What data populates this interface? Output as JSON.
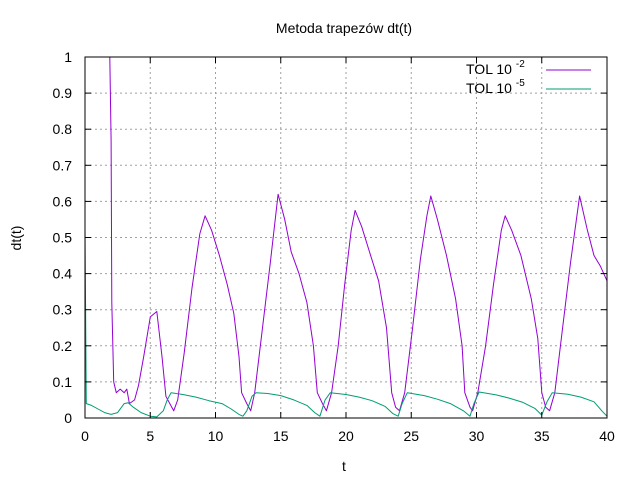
{
  "chart_data": {
    "type": "line",
    "title": "Metoda trapezów dt(t)",
    "xlabel": "t",
    "ylabel": "dt(t)",
    "xlim": [
      0,
      40
    ],
    "ylim": [
      0,
      1
    ],
    "xticks": [
      "0",
      "5",
      "10",
      "15",
      "20",
      "25",
      "30",
      "35",
      "40"
    ],
    "yticks": [
      "0",
      "0.1",
      "0.2",
      "0.3",
      "0.4",
      "0.5",
      "0.6",
      "0.7",
      "0.8",
      "0.9",
      "1"
    ],
    "grid": true,
    "legend_position": "top-right",
    "series": [
      {
        "name": "TOL 10",
        "name_exponent": "-2",
        "color": "#9400d3",
        "points": [
          [
            1.9,
            1.0
          ],
          [
            2.0,
            0.77
          ],
          [
            2.05,
            0.32
          ],
          [
            2.2,
            0.1
          ],
          [
            2.4,
            0.07
          ],
          [
            2.7,
            0.08
          ],
          [
            3.0,
            0.07
          ],
          [
            3.2,
            0.08
          ],
          [
            3.4,
            0.04
          ],
          [
            3.8,
            0.05
          ],
          [
            4.1,
            0.09
          ],
          [
            4.5,
            0.17
          ],
          [
            5.0,
            0.28
          ],
          [
            5.5,
            0.295
          ],
          [
            5.9,
            0.17
          ],
          [
            6.2,
            0.06
          ],
          [
            6.5,
            0.04
          ],
          [
            6.8,
            0.02
          ],
          [
            7.1,
            0.05
          ],
          [
            7.6,
            0.18
          ],
          [
            8.2,
            0.36
          ],
          [
            8.8,
            0.51
          ],
          [
            9.2,
            0.56
          ],
          [
            9.7,
            0.52
          ],
          [
            10.3,
            0.45
          ],
          [
            10.9,
            0.37
          ],
          [
            11.4,
            0.29
          ],
          [
            11.8,
            0.17
          ],
          [
            12.0,
            0.07
          ],
          [
            12.4,
            0.04
          ],
          [
            12.7,
            0.02
          ],
          [
            13.0,
            0.07
          ],
          [
            13.6,
            0.25
          ],
          [
            14.2,
            0.43
          ],
          [
            14.8,
            0.62
          ],
          [
            15.3,
            0.55
          ],
          [
            15.8,
            0.46
          ],
          [
            16.4,
            0.4
          ],
          [
            17.0,
            0.32
          ],
          [
            17.5,
            0.2
          ],
          [
            17.8,
            0.07
          ],
          [
            18.2,
            0.04
          ],
          [
            18.5,
            0.02
          ],
          [
            18.9,
            0.07
          ],
          [
            19.4,
            0.2
          ],
          [
            19.9,
            0.37
          ],
          [
            20.4,
            0.52
          ],
          [
            20.7,
            0.575
          ],
          [
            21.2,
            0.53
          ],
          [
            21.8,
            0.46
          ],
          [
            22.5,
            0.38
          ],
          [
            23.1,
            0.25
          ],
          [
            23.5,
            0.07
          ],
          [
            23.8,
            0.03
          ],
          [
            24.1,
            0.02
          ],
          [
            24.5,
            0.07
          ],
          [
            25.1,
            0.25
          ],
          [
            25.7,
            0.44
          ],
          [
            26.2,
            0.56
          ],
          [
            26.5,
            0.615
          ],
          [
            27.0,
            0.55
          ],
          [
            27.7,
            0.45
          ],
          [
            28.4,
            0.33
          ],
          [
            28.9,
            0.2
          ],
          [
            29.1,
            0.07
          ],
          [
            29.5,
            0.03
          ],
          [
            29.7,
            0.02
          ],
          [
            30.1,
            0.07
          ],
          [
            30.7,
            0.2
          ],
          [
            31.3,
            0.37
          ],
          [
            31.9,
            0.52
          ],
          [
            32.2,
            0.56
          ],
          [
            32.7,
            0.52
          ],
          [
            33.4,
            0.45
          ],
          [
            34.2,
            0.33
          ],
          [
            34.7,
            0.22
          ],
          [
            35.0,
            0.07
          ],
          [
            35.3,
            0.03
          ],
          [
            35.6,
            0.02
          ],
          [
            36.0,
            0.07
          ],
          [
            36.6,
            0.25
          ],
          [
            37.2,
            0.43
          ],
          [
            37.9,
            0.615
          ],
          [
            38.5,
            0.52
          ],
          [
            39.0,
            0.45
          ],
          [
            39.5,
            0.42
          ],
          [
            40.0,
            0.38
          ]
        ]
      },
      {
        "name": "TOL 10",
        "name_exponent": "-5",
        "color": "#009e73",
        "points": [
          [
            0.0,
            0.52
          ],
          [
            0.1,
            0.04
          ],
          [
            0.5,
            0.035
          ],
          [
            1.0,
            0.025
          ],
          [
            1.5,
            0.015
          ],
          [
            2.0,
            0.01
          ],
          [
            2.5,
            0.015
          ],
          [
            3.0,
            0.04
          ],
          [
            3.3,
            0.042
          ],
          [
            3.7,
            0.03
          ],
          [
            4.3,
            0.015
          ],
          [
            5.0,
            0.005
          ],
          [
            5.5,
            0.003
          ],
          [
            6.0,
            0.02
          ],
          [
            6.3,
            0.05
          ],
          [
            6.6,
            0.07
          ],
          [
            7.5,
            0.065
          ],
          [
            8.5,
            0.058
          ],
          [
            9.5,
            0.048
          ],
          [
            10.5,
            0.04
          ],
          [
            11.2,
            0.025
          ],
          [
            11.8,
            0.01
          ],
          [
            12.1,
            0.005
          ],
          [
            12.4,
            0.02
          ],
          [
            12.8,
            0.06
          ],
          [
            13.1,
            0.07
          ],
          [
            14.0,
            0.068
          ],
          [
            15.0,
            0.062
          ],
          [
            16.0,
            0.05
          ],
          [
            17.0,
            0.035
          ],
          [
            17.6,
            0.015
          ],
          [
            18.0,
            0.005
          ],
          [
            18.4,
            0.05
          ],
          [
            18.8,
            0.07
          ],
          [
            20.0,
            0.065
          ],
          [
            21.0,
            0.058
          ],
          [
            22.0,
            0.048
          ],
          [
            23.0,
            0.032
          ],
          [
            23.6,
            0.012
          ],
          [
            24.0,
            0.005
          ],
          [
            24.3,
            0.04
          ],
          [
            24.7,
            0.07
          ],
          [
            26.0,
            0.062
          ],
          [
            27.0,
            0.052
          ],
          [
            28.0,
            0.04
          ],
          [
            29.0,
            0.02
          ],
          [
            29.5,
            0.005
          ],
          [
            29.8,
            0.04
          ],
          [
            30.2,
            0.072
          ],
          [
            31.5,
            0.064
          ],
          [
            32.5,
            0.055
          ],
          [
            33.5,
            0.044
          ],
          [
            34.5,
            0.026
          ],
          [
            35.0,
            0.008
          ],
          [
            35.4,
            0.045
          ],
          [
            35.8,
            0.07
          ],
          [
            37.0,
            0.066
          ],
          [
            38.0,
            0.058
          ],
          [
            39.0,
            0.045
          ],
          [
            39.6,
            0.02
          ],
          [
            40.0,
            0.005
          ]
        ]
      }
    ]
  }
}
